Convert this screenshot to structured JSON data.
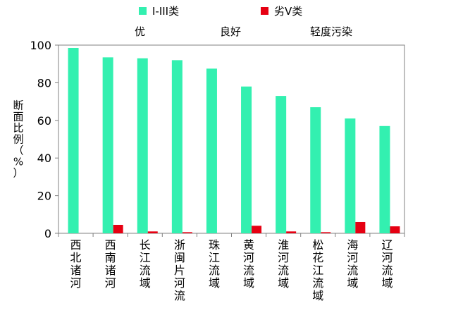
{
  "chart_data": {
    "type": "bar",
    "title": "",
    "xlabel": "",
    "ylabel": "断面比例（%）",
    "ylim": [
      0,
      100
    ],
    "yticks": [
      0,
      20,
      40,
      60,
      80,
      100
    ],
    "grid": false,
    "legend_position": "top",
    "categories": [
      "西北诸河",
      "西南诸河",
      "长江流域",
      "浙闽片河流",
      "珠江流域",
      "黄河流域",
      "淮河流域",
      "松花江流域",
      "海河流域",
      "辽河流域"
    ],
    "series": [
      {
        "name": "I-III类",
        "color": "#33f0b0",
        "values": [
          98.5,
          93.5,
          93.0,
          92.0,
          87.5,
          78.0,
          73.0,
          67.0,
          61.0,
          57.0
        ]
      },
      {
        "name": "劣V类",
        "color": "#e60012",
        "values": [
          0,
          4.5,
          1.0,
          0.6,
          0,
          4.0,
          1.0,
          0.6,
          6.0,
          3.7
        ]
      }
    ],
    "annotations": [
      "优",
      "良好",
      "轻度污染"
    ]
  }
}
